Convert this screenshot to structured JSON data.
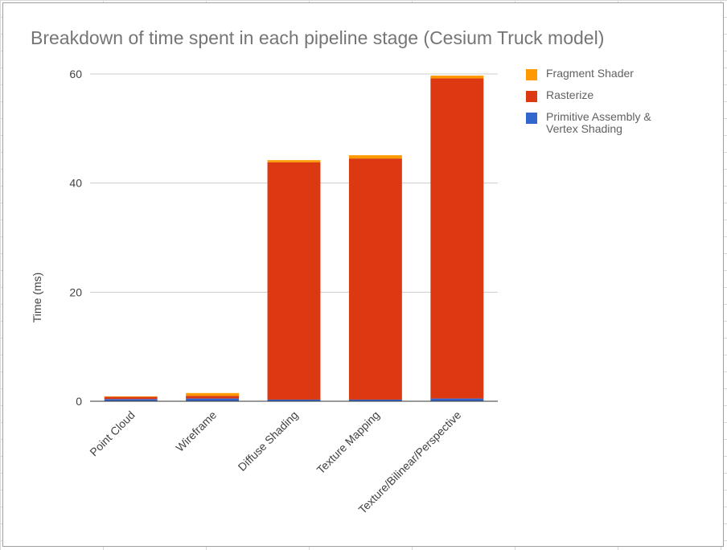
{
  "chart_data": {
    "type": "bar",
    "stacked": true,
    "title": "Breakdown of time spent in each pipeline stage (Cesium Truck model)",
    "ylabel": "Time (ms)",
    "xlabel": "",
    "ylim": [
      0,
      60
    ],
    "yticks": [
      0,
      20,
      40,
      60
    ],
    "grid": true,
    "legend_position": "right",
    "categories": [
      "Point Cloud",
      "Wireframe",
      "Diffuse Shading",
      "Texture Mapping",
      "Texture/Bilinear/Perspective"
    ],
    "series": [
      {
        "name": "Primitive Assembly & Vertex Shading",
        "color": "#3366cc",
        "values": [
          0.4,
          0.5,
          0.3,
          0.3,
          0.5
        ]
      },
      {
        "name": "Rasterize",
        "color": "#dc3912",
        "values": [
          0.4,
          0.5,
          43.5,
          44.2,
          58.7
        ]
      },
      {
        "name": "Fragment Shader",
        "color": "#ff9900",
        "values": [
          0.1,
          0.5,
          0.4,
          0.6,
          0.5
        ]
      }
    ]
  }
}
